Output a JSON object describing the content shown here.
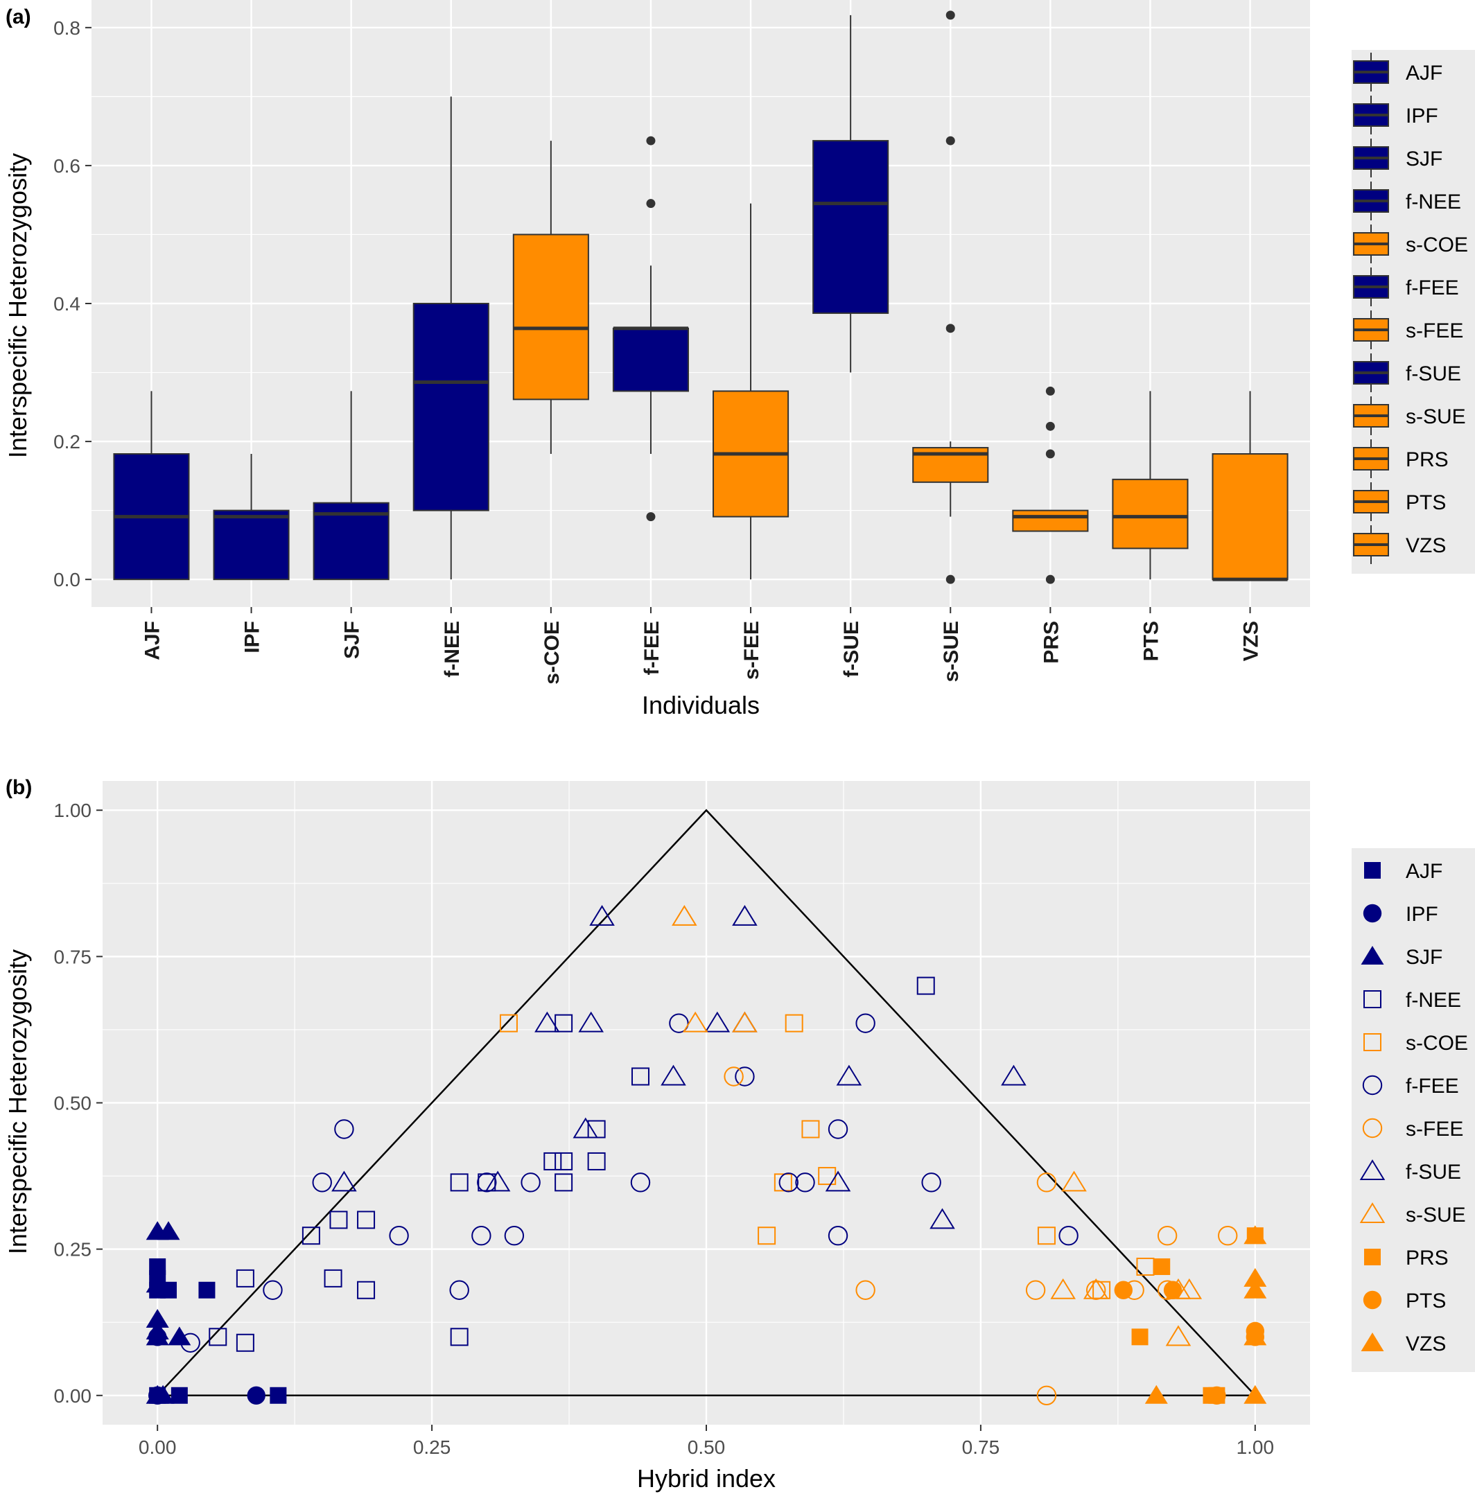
{
  "colors": {
    "blue": "#000080",
    "orange": "#ff8c00",
    "panel_bg": "#ebebeb",
    "grid": "#ffffff",
    "text": "#333333",
    "tick_text": "#4d4d4d"
  },
  "chart_data": [
    {
      "panel_label": "(a)",
      "type": "box",
      "xlabel": "Individuals",
      "ylabel": "Interspecific Heterozygosity",
      "ylim": [
        -0.04,
        0.84
      ],
      "yticks": [
        0.0,
        0.2,
        0.4,
        0.6,
        0.8
      ],
      "ytick_labels": [
        "0.0",
        "0.2",
        "0.4",
        "0.6",
        "0.8"
      ],
      "grid": true,
      "legend_position": "right",
      "categories": [
        "AJF",
        "IPF",
        "SJF",
        "f-NEE",
        "s-COE",
        "f-FEE",
        "s-FEE",
        "f-SUE",
        "s-SUE",
        "PRS",
        "PTS",
        "VZS"
      ],
      "series": [
        {
          "name": "AJF",
          "color": "blue",
          "min": 0.0,
          "q1": 0.0,
          "median": 0.091,
          "q3": 0.182,
          "max": 0.273,
          "outliers": []
        },
        {
          "name": "IPF",
          "color": "blue",
          "min": 0.0,
          "q1": 0.0,
          "median": 0.091,
          "q3": 0.1,
          "max": 0.182,
          "outliers": []
        },
        {
          "name": "SJF",
          "color": "blue",
          "min": 0.0,
          "q1": 0.0,
          "median": 0.095,
          "q3": 0.111,
          "max": 0.273,
          "outliers": []
        },
        {
          "name": "f-NEE",
          "color": "blue",
          "min": 0.0,
          "q1": 0.1,
          "median": 0.286,
          "q3": 0.4,
          "max": 0.7,
          "outliers": []
        },
        {
          "name": "s-COE",
          "color": "orange",
          "min": 0.182,
          "q1": 0.261,
          "median": 0.364,
          "q3": 0.5,
          "max": 0.636,
          "outliers": []
        },
        {
          "name": "f-FEE",
          "color": "blue",
          "min": 0.182,
          "q1": 0.273,
          "median": 0.364,
          "q3": 0.364,
          "max": 0.455,
          "outliers": [
            0.091,
            0.545,
            0.636
          ]
        },
        {
          "name": "s-FEE",
          "color": "orange",
          "min": 0.0,
          "q1": 0.091,
          "median": 0.182,
          "q3": 0.273,
          "max": 0.545,
          "outliers": []
        },
        {
          "name": "f-SUE",
          "color": "blue",
          "min": 0.3,
          "q1": 0.386,
          "median": 0.545,
          "q3": 0.636,
          "max": 0.818,
          "outliers": []
        },
        {
          "name": "s-SUE",
          "color": "orange",
          "min": 0.091,
          "q1": 0.141,
          "median": 0.182,
          "q3": 0.191,
          "max": 0.2,
          "outliers": [
            0.0,
            0.364,
            0.636,
            0.818
          ]
        },
        {
          "name": "PRS",
          "color": "orange",
          "min": 0.07,
          "q1": 0.07,
          "median": 0.091,
          "q3": 0.1,
          "max": 0.1,
          "outliers": [
            0.0,
            0.182,
            0.222,
            0.273
          ]
        },
        {
          "name": "PTS",
          "color": "orange",
          "min": 0.0,
          "q1": 0.045,
          "median": 0.091,
          "q3": 0.145,
          "max": 0.273,
          "outliers": []
        },
        {
          "name": "VZS",
          "color": "orange",
          "min": 0.0,
          "q1": 0.0,
          "median": 0.0,
          "q3": 0.182,
          "max": 0.273,
          "outliers": []
        }
      ]
    },
    {
      "panel_label": "(b)",
      "type": "scatter",
      "xlabel": "Hybrid index",
      "ylabel": "Interspecific Heterozygosity",
      "xlim": [
        -0.05,
        1.05
      ],
      "ylim": [
        -0.05,
        1.05
      ],
      "xticks": [
        0.0,
        0.25,
        0.5,
        0.75,
        1.0
      ],
      "xtick_labels": [
        "0.00",
        "0.25",
        "0.50",
        "0.75",
        "1.00"
      ],
      "yticks": [
        0.0,
        0.25,
        0.5,
        0.75,
        1.0
      ],
      "ytick_labels": [
        "0.00",
        "0.25",
        "0.50",
        "0.75",
        "1.00"
      ],
      "grid": true,
      "legend_position": "right",
      "triangle": [
        [
          0,
          0
        ],
        [
          0.5,
          1.0
        ],
        [
          1.0,
          0
        ],
        [
          0,
          0
        ]
      ],
      "series": [
        {
          "name": "AJF",
          "color": "blue",
          "shape": "square",
          "filled": true,
          "points": [
            [
              0,
              0.22
            ],
            [
              0,
              0.2
            ],
            [
              0,
              0.18
            ],
            [
              0.01,
              0.18
            ],
            [
              0.045,
              0.18
            ],
            [
              0,
              0
            ],
            [
              0.02,
              0
            ],
            [
              0.11,
              0
            ]
          ]
        },
        {
          "name": "IPF",
          "color": "blue",
          "shape": "circle",
          "filled": true,
          "points": [
            [
              0,
              0.1
            ],
            [
              0,
              0
            ],
            [
              0.09,
              0
            ]
          ]
        },
        {
          "name": "SJF",
          "color": "blue",
          "shape": "triangle",
          "filled": true,
          "points": [
            [
              0,
              0.28
            ],
            [
              0.01,
              0.28
            ],
            [
              0,
              0.19
            ],
            [
              0,
              0.13
            ],
            [
              0,
              0.11
            ],
            [
              0,
              0.1
            ],
            [
              0.02,
              0.1
            ],
            [
              0,
              0
            ],
            [
              0.005,
              0
            ]
          ]
        },
        {
          "name": "f-NEE",
          "color": "blue",
          "shape": "square",
          "filled": false,
          "points": [
            [
              0.7,
              0.7
            ],
            [
              0.37,
              0.636
            ],
            [
              0.44,
              0.545
            ],
            [
              0.4,
              0.455
            ],
            [
              0.36,
              0.4
            ],
            [
              0.37,
              0.4
            ],
            [
              0.4,
              0.4
            ],
            [
              0.275,
              0.364
            ],
            [
              0.3,
              0.364
            ],
            [
              0.37,
              0.364
            ],
            [
              0.14,
              0.273
            ],
            [
              0.165,
              0.3
            ],
            [
              0.19,
              0.3
            ],
            [
              0.08,
              0.2
            ],
            [
              0.16,
              0.2
            ],
            [
              0.19,
              0.18
            ],
            [
              0.055,
              0.1
            ],
            [
              0.08,
              0.09
            ],
            [
              0.275,
              0.1
            ]
          ]
        },
        {
          "name": "s-COE",
          "color": "orange",
          "shape": "square",
          "filled": false,
          "points": [
            [
              0.32,
              0.636
            ],
            [
              0.58,
              0.636
            ],
            [
              0.595,
              0.455
            ],
            [
              0.61,
              0.375
            ],
            [
              0.57,
              0.364
            ],
            [
              0.555,
              0.273
            ],
            [
              0.81,
              0.273
            ],
            [
              0.9,
              0.22
            ],
            [
              0.86,
              0.18
            ]
          ]
        },
        {
          "name": "f-FEE",
          "color": "blue",
          "shape": "circle",
          "filled": false,
          "points": [
            [
              0.475,
              0.636
            ],
            [
              0.645,
              0.636
            ],
            [
              0.535,
              0.545
            ],
            [
              0.17,
              0.455
            ],
            [
              0.62,
              0.455
            ],
            [
              0.15,
              0.364
            ],
            [
              0.3,
              0.364
            ],
            [
              0.34,
              0.364
            ],
            [
              0.44,
              0.364
            ],
            [
              0.575,
              0.364
            ],
            [
              0.59,
              0.364
            ],
            [
              0.705,
              0.364
            ],
            [
              0.22,
              0.273
            ],
            [
              0.295,
              0.273
            ],
            [
              0.325,
              0.273
            ],
            [
              0.62,
              0.273
            ],
            [
              0.83,
              0.273
            ],
            [
              0.105,
              0.18
            ],
            [
              0.275,
              0.18
            ],
            [
              0.03,
              0.09
            ]
          ]
        },
        {
          "name": "s-FEE",
          "color": "orange",
          "shape": "circle",
          "filled": false,
          "points": [
            [
              0.525,
              0.545
            ],
            [
              0.81,
              0.364
            ],
            [
              0.92,
              0.273
            ],
            [
              0.975,
              0.273
            ],
            [
              0.645,
              0.18
            ],
            [
              0.8,
              0.18
            ],
            [
              0.855,
              0.18
            ],
            [
              0.89,
              0.18
            ],
            [
              0.92,
              0.18
            ],
            [
              0.81,
              0
            ]
          ]
        },
        {
          "name": "f-SUE",
          "color": "blue",
          "shape": "triangle",
          "filled": false,
          "points": [
            [
              0.405,
              0.818
            ],
            [
              0.535,
              0.818
            ],
            [
              0.355,
              0.636
            ],
            [
              0.395,
              0.636
            ],
            [
              0.51,
              0.636
            ],
            [
              0.535,
              0.636
            ],
            [
              0.47,
              0.545
            ],
            [
              0.63,
              0.545
            ],
            [
              0.78,
              0.545
            ],
            [
              0.39,
              0.455
            ],
            [
              0.17,
              0.364
            ],
            [
              0.31,
              0.364
            ],
            [
              0.62,
              0.364
            ],
            [
              0.715,
              0.3
            ]
          ]
        },
        {
          "name": "s-SUE",
          "color": "orange",
          "shape": "triangle",
          "filled": false,
          "points": [
            [
              0.48,
              0.818
            ],
            [
              0.49,
              0.636
            ],
            [
              0.535,
              0.636
            ],
            [
              0.835,
              0.364
            ],
            [
              0.825,
              0.18
            ],
            [
              0.855,
              0.18
            ],
            [
              0.93,
              0.18
            ],
            [
              0.94,
              0.18
            ],
            [
              0.93,
              0.1
            ]
          ]
        },
        {
          "name": "PRS",
          "color": "orange",
          "shape": "square",
          "filled": true,
          "points": [
            [
              0.915,
              0.22
            ],
            [
              0.895,
              0.1
            ],
            [
              1.0,
              0.273
            ],
            [
              0.96,
              0
            ],
            [
              0.965,
              0
            ]
          ]
        },
        {
          "name": "PTS",
          "color": "orange",
          "shape": "circle",
          "filled": true,
          "points": [
            [
              0.88,
              0.18
            ],
            [
              0.925,
              0.18
            ],
            [
              1.0,
              0.11
            ],
            [
              1.0,
              0.1
            ],
            [
              0.965,
              0
            ]
          ]
        },
        {
          "name": "VZS",
          "color": "orange",
          "shape": "triangle",
          "filled": true,
          "points": [
            [
              1.0,
              0.273
            ],
            [
              1.0,
              0.2
            ],
            [
              1.0,
              0.18
            ],
            [
              1.0,
              0.1
            ],
            [
              0.91,
              0
            ],
            [
              1.0,
              0
            ]
          ]
        }
      ]
    }
  ]
}
